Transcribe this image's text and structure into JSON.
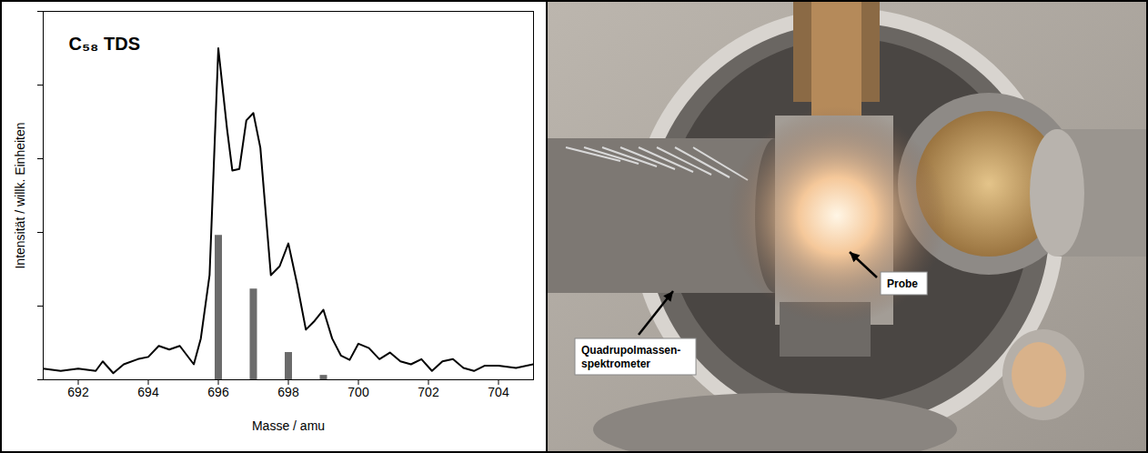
{
  "chart_data": {
    "type": "line",
    "title": "C₅₈ TDS",
    "x_label": "Masse / amu",
    "y_label": "Intensität / willk. Einheiten",
    "xlim": [
      691,
      705
    ],
    "xticks": [
      692,
      694,
      696,
      698,
      700,
      702,
      704
    ],
    "ylim": [
      0,
      5
    ],
    "yticks": [
      0,
      1,
      2,
      3,
      4,
      5
    ],
    "tick_labels": "x",
    "grid": false,
    "series": [
      {
        "type": "line",
        "color": "#000000",
        "x": [
          691,
          691.5,
          692,
          692.5,
          692.7,
          693,
          693.3,
          693.7,
          694,
          694.3,
          694.6,
          694.9,
          695.3,
          695.5,
          695.75,
          696,
          696.25,
          696.4,
          696.6,
          696.8,
          697,
          697.2,
          697.5,
          697.75,
          698,
          698.25,
          698.5,
          698.75,
          699,
          699.25,
          699.5,
          699.75,
          700,
          700.3,
          700.6,
          700.9,
          701.2,
          701.5,
          701.8,
          702.1,
          702.4,
          702.7,
          703,
          703.3,
          703.6,
          704,
          704.5,
          705
        ],
        "values": [
          0.15,
          0.12,
          0.15,
          0.12,
          0.25,
          0.09,
          0.21,
          0.28,
          0.31,
          0.46,
          0.41,
          0.46,
          0.21,
          0.56,
          1.42,
          4.5,
          3.4,
          2.84,
          2.86,
          3.52,
          3.62,
          3.15,
          1.42,
          1.54,
          1.85,
          1.3,
          0.68,
          0.8,
          0.95,
          0.56,
          0.33,
          0.27,
          0.49,
          0.43,
          0.28,
          0.37,
          0.25,
          0.21,
          0.28,
          0.12,
          0.25,
          0.28,
          0.16,
          0.12,
          0.19,
          0.19,
          0.16,
          0.21
        ]
      },
      {
        "type": "bar",
        "color": "#6b6b6b",
        "x": [
          696,
          697,
          698,
          699
        ],
        "values": [
          1.96,
          1.23,
          0.37,
          0.06
        ]
      }
    ]
  },
  "photo": {
    "labels": [
      "Probe",
      "Quadrupolmassen-spektrometer"
    ]
  }
}
